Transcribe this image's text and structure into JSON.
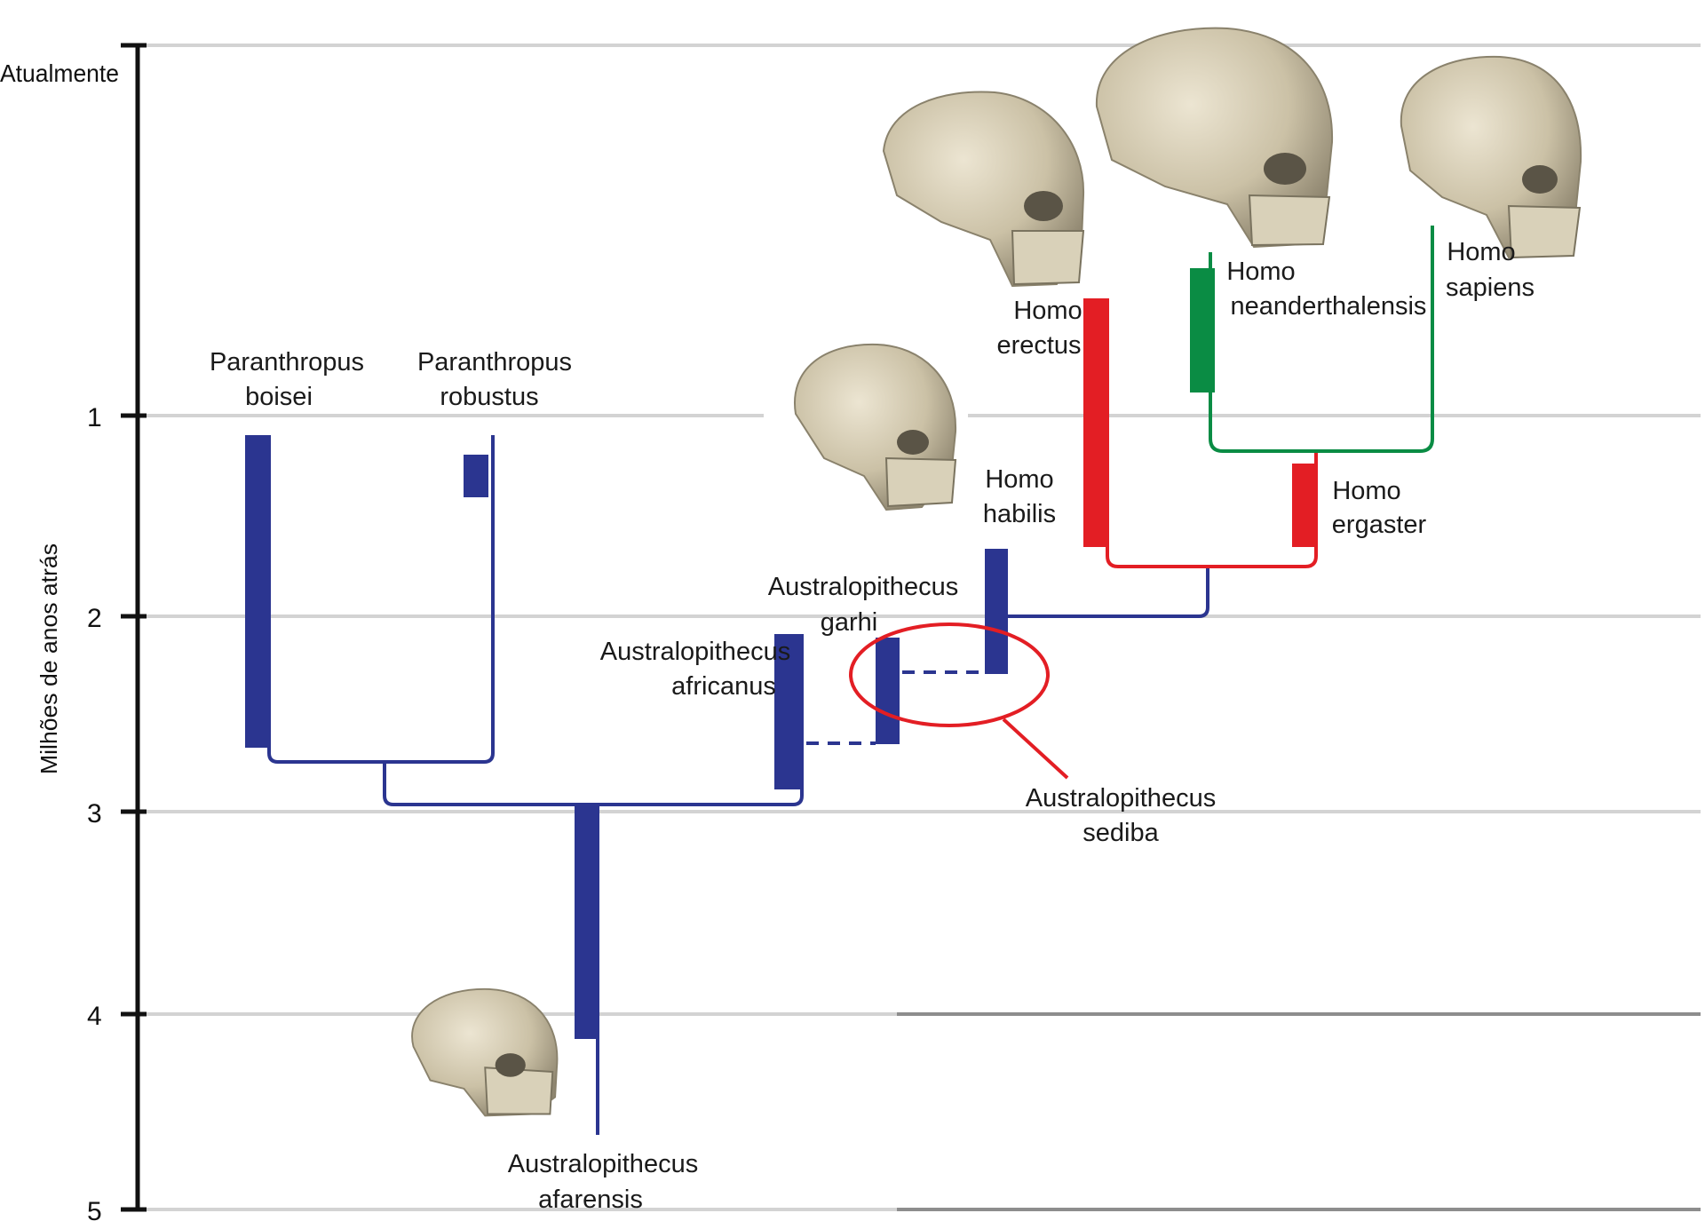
{
  "axis": {
    "title": "Milhões de anos atrás",
    "top_label": "Atualmente",
    "ticks": [
      "1",
      "2",
      "3",
      "4",
      "5"
    ]
  },
  "species": {
    "p_boisei": [
      "Paranthropus",
      "boisei"
    ],
    "p_robustus": [
      "Paranthropus",
      "robustus"
    ],
    "a_afarensis": [
      "Australopithecus",
      "afarensis"
    ],
    "a_africanus": [
      "Australopithecus",
      "africanus"
    ],
    "a_garhi": [
      "Australopithecus",
      "garhi"
    ],
    "a_sediba": [
      "Australopithecus",
      "sediba"
    ],
    "h_habilis": [
      "Homo",
      "habilis"
    ],
    "h_erectus": [
      "Homo",
      "erectus"
    ],
    "h_ergaster": [
      "Homo",
      "ergaster"
    ],
    "h_neanderthalensis": [
      "Homo",
      "neanderthalensis"
    ],
    "h_sapiens": [
      "Homo",
      "sapiens"
    ]
  },
  "colors": {
    "australopith": "#2b3590",
    "erectus_lineage": "#e31e24",
    "sapiens_lineage": "#0a8c44",
    "gridline": "#d3d3d3",
    "axis": "#111111",
    "skull": "#cfc6ae"
  },
  "icons": [
    "skull-afarensis",
    "skull-habilis",
    "skull-erectus",
    "skull-neanderthal",
    "skull-sapiens"
  ]
}
